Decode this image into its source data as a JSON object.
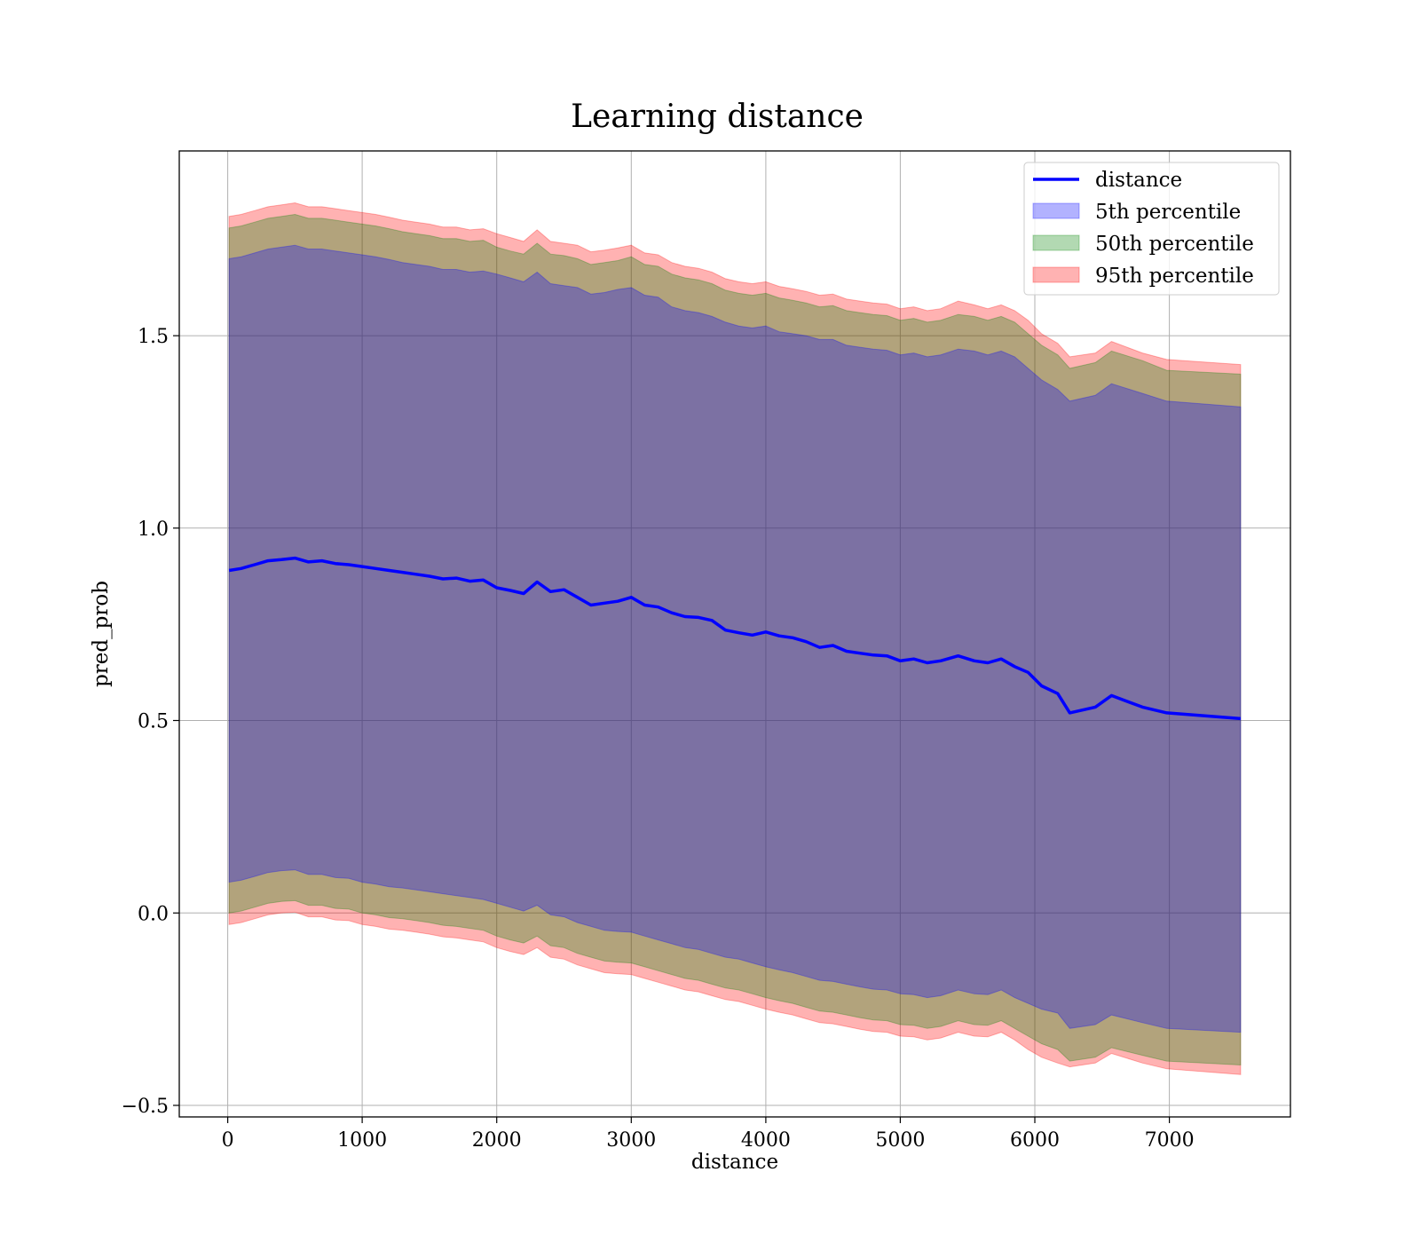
{
  "chart_data": {
    "type": "area",
    "title": "Learning distance",
    "xlabel": "distance",
    "ylabel": "pred_prob",
    "xlim": [
      -360,
      7900
    ],
    "ylim": [
      -0.53,
      1.98
    ],
    "xticks": [
      0,
      1000,
      2000,
      3000,
      4000,
      5000,
      6000,
      7000
    ],
    "yticks": [
      -0.5,
      0.0,
      0.5,
      1.0,
      1.5
    ],
    "ytick_labels": [
      "−0.5",
      "0.0",
      "0.5",
      "1.0",
      "1.5"
    ],
    "grid": true,
    "legend_position": "top-right",
    "x": [
      10,
      100,
      200,
      300,
      400,
      500,
      600,
      700,
      800,
      900,
      1000,
      1100,
      1200,
      1300,
      1400,
      1500,
      1600,
      1700,
      1800,
      1900,
      2000,
      2100,
      2200,
      2300,
      2400,
      2500,
      2600,
      2700,
      2800,
      2900,
      3000,
      3100,
      3200,
      3300,
      3400,
      3500,
      3600,
      3700,
      3800,
      3900,
      4000,
      4100,
      4200,
      4300,
      4400,
      4500,
      4600,
      4700,
      4800,
      4900,
      5000,
      5100,
      5200,
      5300,
      5430,
      5550,
      5650,
      5750,
      5850,
      5950,
      6050,
      6170,
      6260,
      6450,
      6570,
      6800,
      6980,
      7530
    ],
    "series": [
      {
        "name": "distance",
        "kind": "line",
        "color": "#0000ff",
        "values": [
          0.89,
          0.895,
          0.905,
          0.915,
          0.918,
          0.922,
          0.912,
          0.915,
          0.908,
          0.905,
          0.9,
          0.895,
          0.89,
          0.885,
          0.88,
          0.875,
          0.868,
          0.87,
          0.862,
          0.865,
          0.845,
          0.838,
          0.83,
          0.86,
          0.835,
          0.84,
          0.82,
          0.8,
          0.805,
          0.81,
          0.82,
          0.8,
          0.795,
          0.78,
          0.77,
          0.768,
          0.76,
          0.735,
          0.728,
          0.722,
          0.73,
          0.72,
          0.715,
          0.705,
          0.69,
          0.695,
          0.68,
          0.675,
          0.67,
          0.668,
          0.655,
          0.66,
          0.65,
          0.655,
          0.668,
          0.655,
          0.65,
          0.66,
          0.64,
          0.625,
          0.59,
          0.57,
          0.52,
          0.535,
          0.565,
          0.535,
          0.52,
          0.505
        ]
      },
      {
        "name": "5th percentile",
        "kind": "band",
        "color": "#0000ff",
        "lower": [
          0.08,
          0.085,
          0.095,
          0.105,
          0.11,
          0.112,
          0.1,
          0.1,
          0.092,
          0.09,
          0.08,
          0.075,
          0.068,
          0.065,
          0.06,
          0.055,
          0.05,
          0.045,
          0.04,
          0.035,
          0.025,
          0.015,
          0.005,
          0.02,
          -0.005,
          -0.01,
          -0.025,
          -0.035,
          -0.045,
          -0.048,
          -0.05,
          -0.06,
          -0.07,
          -0.08,
          -0.09,
          -0.095,
          -0.105,
          -0.115,
          -0.12,
          -0.13,
          -0.14,
          -0.148,
          -0.155,
          -0.165,
          -0.175,
          -0.178,
          -0.185,
          -0.192,
          -0.198,
          -0.2,
          -0.21,
          -0.212,
          -0.22,
          -0.215,
          -0.2,
          -0.21,
          -0.212,
          -0.2,
          -0.22,
          -0.235,
          -0.25,
          -0.26,
          -0.3,
          -0.29,
          -0.265,
          -0.285,
          -0.3,
          -0.31
        ],
        "upper": [
          1.7,
          1.705,
          1.715,
          1.725,
          1.73,
          1.735,
          1.725,
          1.725,
          1.72,
          1.715,
          1.71,
          1.705,
          1.698,
          1.69,
          1.685,
          1.68,
          1.672,
          1.672,
          1.665,
          1.668,
          1.66,
          1.65,
          1.64,
          1.665,
          1.635,
          1.63,
          1.625,
          1.608,
          1.612,
          1.62,
          1.625,
          1.605,
          1.6,
          1.575,
          1.565,
          1.56,
          1.55,
          1.535,
          1.525,
          1.52,
          1.525,
          1.51,
          1.505,
          1.5,
          1.49,
          1.49,
          1.475,
          1.47,
          1.465,
          1.462,
          1.45,
          1.455,
          1.445,
          1.45,
          1.465,
          1.46,
          1.45,
          1.46,
          1.445,
          1.415,
          1.385,
          1.36,
          1.33,
          1.345,
          1.375,
          1.35,
          1.33,
          1.315
        ]
      },
      {
        "name": "50th percentile",
        "kind": "band",
        "color": "#008000",
        "lower": [
          0.0,
          0.005,
          0.015,
          0.025,
          0.03,
          0.032,
          0.02,
          0.02,
          0.012,
          0.01,
          0.0,
          -0.005,
          -0.012,
          -0.015,
          -0.02,
          -0.025,
          -0.032,
          -0.035,
          -0.04,
          -0.045,
          -0.06,
          -0.07,
          -0.078,
          -0.06,
          -0.085,
          -0.09,
          -0.105,
          -0.115,
          -0.125,
          -0.128,
          -0.13,
          -0.14,
          -0.15,
          -0.16,
          -0.17,
          -0.175,
          -0.185,
          -0.195,
          -0.2,
          -0.21,
          -0.22,
          -0.228,
          -0.235,
          -0.245,
          -0.255,
          -0.258,
          -0.265,
          -0.272,
          -0.278,
          -0.28,
          -0.29,
          -0.292,
          -0.3,
          -0.295,
          -0.28,
          -0.29,
          -0.292,
          -0.28,
          -0.3,
          -0.32,
          -0.34,
          -0.355,
          -0.385,
          -0.375,
          -0.35,
          -0.37,
          -0.385,
          -0.395
        ],
        "upper": [
          1.78,
          1.785,
          1.795,
          1.805,
          1.81,
          1.815,
          1.805,
          1.805,
          1.8,
          1.795,
          1.79,
          1.785,
          1.778,
          1.77,
          1.765,
          1.76,
          1.752,
          1.752,
          1.745,
          1.748,
          1.73,
          1.72,
          1.712,
          1.74,
          1.712,
          1.708,
          1.7,
          1.685,
          1.69,
          1.695,
          1.705,
          1.685,
          1.68,
          1.66,
          1.65,
          1.645,
          1.635,
          1.618,
          1.61,
          1.605,
          1.61,
          1.598,
          1.592,
          1.585,
          1.575,
          1.578,
          1.565,
          1.56,
          1.555,
          1.552,
          1.54,
          1.545,
          1.535,
          1.54,
          1.555,
          1.55,
          1.54,
          1.55,
          1.535,
          1.505,
          1.475,
          1.45,
          1.415,
          1.43,
          1.46,
          1.435,
          1.41,
          1.4
        ]
      },
      {
        "name": "95th percentile",
        "kind": "band",
        "color": "#ff0000",
        "lower": [
          -0.03,
          -0.025,
          -0.015,
          -0.005,
          0.0,
          0.002,
          -0.01,
          -0.01,
          -0.018,
          -0.02,
          -0.03,
          -0.035,
          -0.042,
          -0.045,
          -0.05,
          -0.055,
          -0.062,
          -0.065,
          -0.07,
          -0.075,
          -0.09,
          -0.1,
          -0.108,
          -0.09,
          -0.115,
          -0.12,
          -0.135,
          -0.145,
          -0.155,
          -0.158,
          -0.16,
          -0.17,
          -0.18,
          -0.19,
          -0.2,
          -0.205,
          -0.215,
          -0.225,
          -0.23,
          -0.24,
          -0.25,
          -0.258,
          -0.265,
          -0.275,
          -0.285,
          -0.288,
          -0.295,
          -0.302,
          -0.308,
          -0.31,
          -0.32,
          -0.322,
          -0.33,
          -0.325,
          -0.31,
          -0.32,
          -0.322,
          -0.31,
          -0.33,
          -0.355,
          -0.375,
          -0.39,
          -0.4,
          -0.39,
          -0.365,
          -0.39,
          -0.405,
          -0.42
        ],
        "upper": [
          1.81,
          1.815,
          1.825,
          1.835,
          1.84,
          1.845,
          1.835,
          1.835,
          1.83,
          1.825,
          1.82,
          1.815,
          1.808,
          1.8,
          1.795,
          1.79,
          1.782,
          1.782,
          1.775,
          1.778,
          1.765,
          1.755,
          1.745,
          1.775,
          1.745,
          1.74,
          1.735,
          1.718,
          1.722,
          1.728,
          1.735,
          1.715,
          1.71,
          1.69,
          1.68,
          1.675,
          1.665,
          1.648,
          1.64,
          1.635,
          1.64,
          1.628,
          1.622,
          1.615,
          1.605,
          1.608,
          1.595,
          1.59,
          1.585,
          1.582,
          1.57,
          1.575,
          1.565,
          1.57,
          1.59,
          1.58,
          1.57,
          1.58,
          1.565,
          1.54,
          1.505,
          1.48,
          1.445,
          1.455,
          1.485,
          1.455,
          1.438,
          1.425
        ]
      }
    ]
  }
}
